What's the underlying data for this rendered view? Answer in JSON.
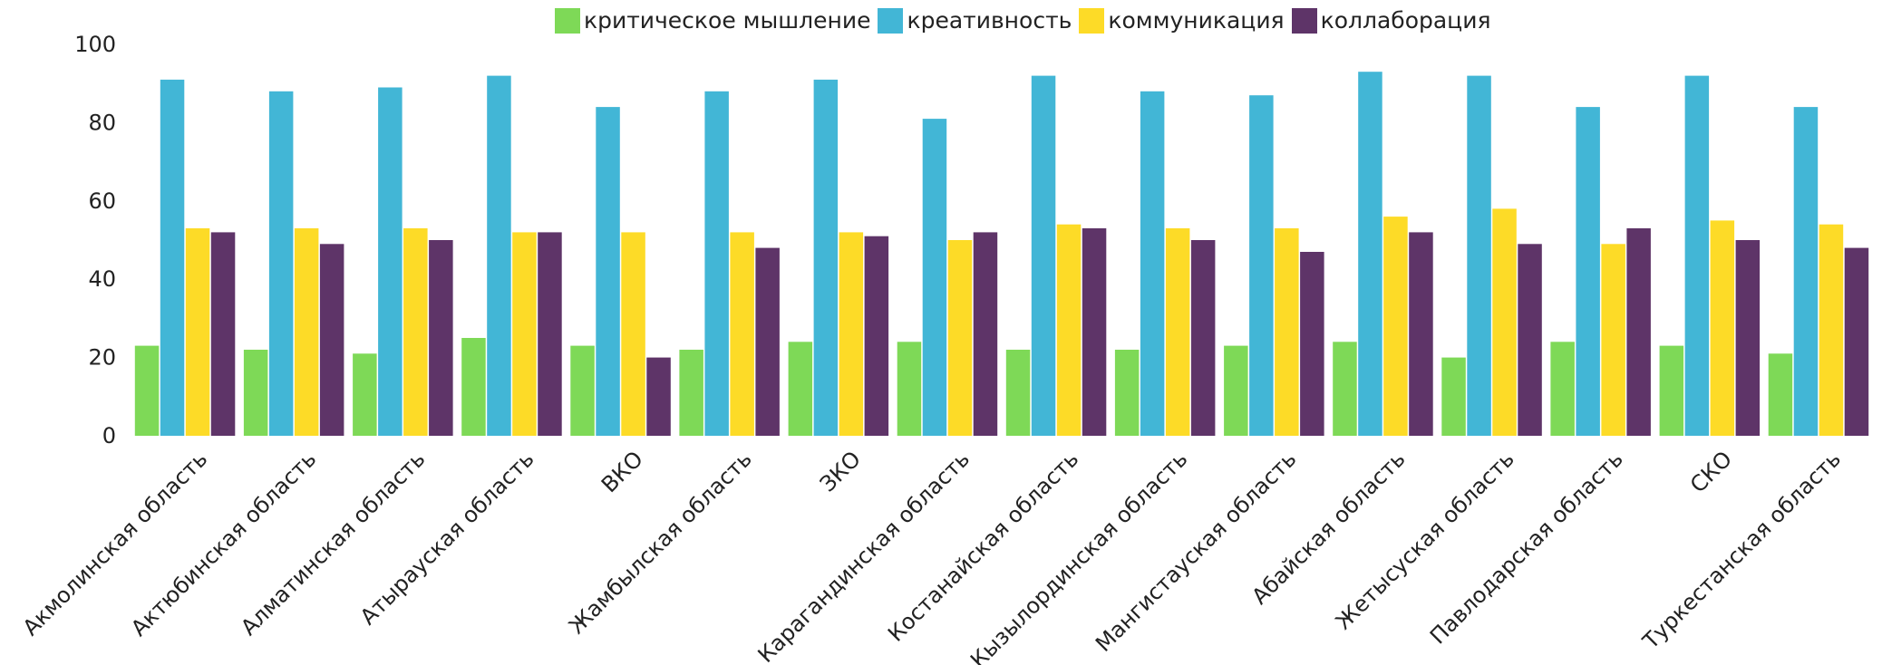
{
  "chart_data": {
    "type": "bar",
    "categories": [
      "Акмолинская область",
      "Актюбинская область",
      "Алматинская область",
      "Атырауская область",
      "ВКО",
      "Жамбылская область",
      "ЗКО",
      "Карагандинская область",
      "Костанайская область",
      "Кызылординская область",
      "Мангистауская область",
      "Абайская область",
      "Жетысуская область",
      "Павлодарская область",
      "СКО",
      "Туркестанская область"
    ],
    "series": [
      {
        "name": "критическое мышление",
        "color": "#7ed957",
        "values": [
          23,
          22,
          21,
          25,
          23,
          22,
          24,
          24,
          22,
          22,
          23,
          24,
          20,
          24,
          23,
          21
        ]
      },
      {
        "name": "креативность",
        "color": "#42b6d6",
        "values": [
          91,
          88,
          89,
          92,
          84,
          88,
          91,
          81,
          92,
          88,
          87,
          93,
          92,
          84,
          92,
          84
        ]
      },
      {
        "name": "коммуникация",
        "color": "#fddb27",
        "values": [
          53,
          53,
          53,
          52,
          52,
          52,
          52,
          50,
          54,
          53,
          53,
          56,
          58,
          49,
          55,
          54
        ]
      },
      {
        "name": "коллаборация",
        "color": "#5e3468",
        "values": [
          52,
          49,
          50,
          52,
          20,
          48,
          51,
          52,
          53,
          50,
          47,
          52,
          49,
          53,
          50,
          48
        ]
      }
    ],
    "yticks": [
      0,
      20,
      40,
      60,
      80,
      100
    ],
    "ylim": [
      0,
      100
    ],
    "legend_position": "top"
  }
}
